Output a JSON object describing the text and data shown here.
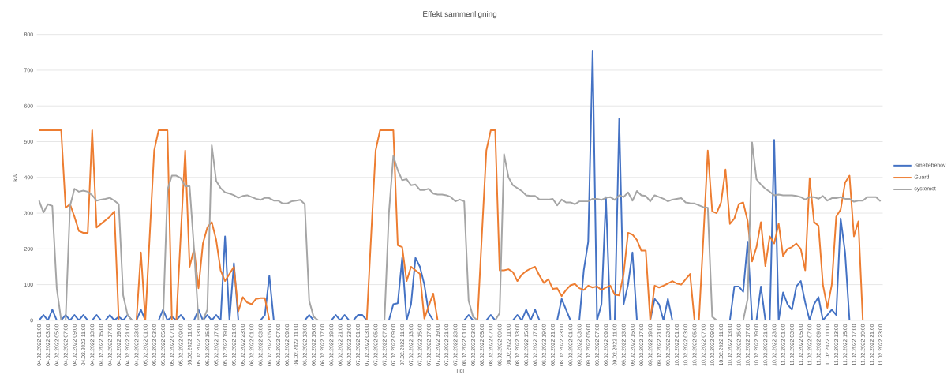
{
  "chart_data": {
    "type": "line",
    "title": "Effekt sammenligning",
    "xlabel": "Tidl",
    "ylabel": "kW",
    "categories": [
      "04.02.2022 01:00",
      null,
      "04.02.2022 03:00",
      null,
      "04.02.2022 05:00",
      null,
      "04.02.2022 07:00",
      null,
      "04.02.2022 09:00",
      null,
      "04.02.2022 11:00",
      null,
      "04.02.2022 13:00",
      null,
      "04.02.2022 15:00",
      null,
      "04.02.2022 17:00",
      null,
      "04.02.2022 19:00",
      null,
      "04.02.2022 21:00",
      null,
      "04.02.2022 23:00",
      null,
      "05.02.2022 01:00",
      null,
      "05.02.2022 03:00",
      null,
      "05.02.2022 05:00",
      null,
      "05.02.2022 07:00",
      null,
      "05.02.2022 09:00",
      null,
      "05.02.2022 11:00",
      null,
      "05.02.2022 13:00",
      null,
      "05.02.2022 15:00",
      null,
      "05.02.2022 17:00",
      null,
      "05.02.2022 19:00",
      null,
      "05.02.2022 21:00",
      null,
      "05.02.2022 23:00",
      null,
      "06.02.2022 01:00",
      null,
      "06.02.2022 03:00",
      null,
      "06.02.2022 05:00",
      null,
      "06.02.2022 07:00",
      null,
      "06.02.2022 09:00",
      null,
      "06.02.2022 11:00",
      null,
      "06.02.2022 13:00",
      null,
      "06.02.2022 15:00",
      null,
      "06.02.2022 17:00",
      null,
      "06.02.2022 19:00",
      null,
      "06.02.2022 21:00",
      null,
      "06.02.2022 23:00",
      null,
      "07.02.2022 01:00",
      null,
      "07.02.2022 03:00",
      null,
      "07.02.2022 05:00",
      null,
      "07.02.2022 07:00",
      null,
      "07.02.2022 09:00",
      null,
      "07.02.2022 11:00",
      null,
      "07.02.2022 13:00",
      null,
      "07.02.2022 15:00",
      null,
      "07.02.2022 17:00",
      null,
      "07.02.2022 19:00",
      null,
      "07.02.2022 21:00",
      null,
      "07.02.2022 23:00",
      null,
      "08.02.2022 01:00",
      null,
      "08.02.2022 03:00",
      null,
      "08.02.2022 05:00",
      null,
      "08.02.2022 07:00",
      null,
      "08.02.2022 09:00",
      null,
      "08.02.2022 11:00",
      null,
      "08.02.2022 13:00",
      null,
      "08.02.2022 15:00",
      null,
      "08.02.2022 17:00",
      null,
      "08.02.2022 19:00",
      null,
      "08.02.2022 21:00",
      null,
      "08.02.2022 23:00",
      null,
      "09.02.2022 01:00",
      null,
      "09.02.2022 03:00",
      null,
      "09.02.2022 05:00",
      null,
      "09.02.2022 07:00",
      null,
      "09.02.2022 09:00",
      null,
      "09.02.2022 11:00",
      null,
      "09.02.2022 13:00",
      null,
      "09.02.2022 15:00",
      null,
      "09.02.2022 17:00",
      null,
      "09.02.2022 19:00",
      null,
      "09.02.2022 21:00",
      null,
      "09.02.2022 23:00",
      null,
      "10.02.2022 01:00",
      null,
      "10.02.2022 03:00",
      null,
      "10.02.2022 05:00",
      null,
      "10.02.2022 07:00",
      null,
      "10.02.2022 09:00",
      null,
      "10.02.2022 11:00",
      null,
      "10.02.2022 13:00",
      null,
      "10.02.2022 15:00",
      null,
      "10.02.2022 17:00",
      null,
      "10.02.2022 19:00",
      null,
      "10.02.2022 21:00",
      null,
      "10.02.2022 23:00",
      null,
      "11.02.2022 01:00",
      null,
      "11.02.2022 03:00",
      null,
      "11.02.2022 05:00",
      null,
      "11.02.2022 07:00",
      null,
      "11.02.2022 09:00",
      null,
      "11.02.2022 11:00",
      null,
      "11.02.2022 13:00",
      null,
      "11.02.2022 15:00",
      null,
      "11.02.2022 17:00",
      null,
      "11.02.2022 19:00",
      null,
      "11.02.2022 21:00",
      null,
      "11.02.2022 23:00"
    ],
    "series": [
      {
        "name": "Smeltebehov",
        "color": "#4472c4",
        "values": [
          0,
          15,
          0,
          30,
          0,
          0,
          15,
          0,
          15,
          0,
          15,
          0,
          0,
          15,
          0,
          0,
          15,
          0,
          10,
          0,
          15,
          0,
          0,
          30,
          0,
          0,
          0,
          0,
          30,
          0,
          10,
          0,
          15,
          0,
          0,
          0,
          30,
          0,
          15,
          0,
          15,
          0,
          235,
          0,
          160,
          0,
          0,
          0,
          0,
          0,
          0,
          15,
          125,
          0,
          0,
          0,
          0,
          0,
          0,
          0,
          0,
          15,
          0,
          0,
          0,
          0,
          0,
          15,
          0,
          15,
          0,
          0,
          15,
          15,
          0,
          0,
          0,
          0,
          0,
          0,
          45,
          48,
          175,
          0,
          45,
          175,
          150,
          100,
          20,
          0,
          0,
          0,
          0,
          0,
          0,
          0,
          0,
          15,
          0,
          0,
          0,
          0,
          15,
          0,
          0,
          0,
          0,
          0,
          15,
          0,
          30,
          0,
          30,
          0,
          0,
          0,
          0,
          0,
          60,
          30,
          0,
          0,
          0,
          140,
          220,
          755,
          0,
          45,
          345,
          0,
          0,
          565,
          45,
          100,
          190,
          0,
          0,
          0,
          0,
          60,
          45,
          0,
          60,
          0,
          0,
          0,
          0,
          0,
          0,
          0,
          0,
          0,
          0,
          0,
          0,
          0,
          0,
          95,
          95,
          80,
          220,
          0,
          0,
          95,
          0,
          0,
          505,
          0,
          78,
          45,
          30,
          95,
          110,
          50,
          0,
          45,
          65,
          0,
          15,
          30,
          15,
          285,
          190,
          0,
          0,
          0,
          0,
          0,
          null,
          null,
          null
        ]
      },
      {
        "name": "Guard",
        "color": "#ed7d31",
        "values": [
          532,
          532,
          532,
          532,
          532,
          532,
          315,
          325,
          290,
          250,
          245,
          245,
          532,
          260,
          270,
          280,
          290,
          305,
          0,
          0,
          0,
          0,
          0,
          190,
          0,
          240,
          475,
          532,
          532,
          532,
          0,
          0,
          240,
          475,
          150,
          200,
          90,
          215,
          260,
          275,
          225,
          140,
          110,
          130,
          150,
          25,
          65,
          50,
          45,
          60,
          62,
          62,
          0,
          0,
          0,
          0,
          0,
          0,
          0,
          0,
          0,
          0,
          0,
          0,
          0,
          0,
          0,
          0,
          0,
          0,
          0,
          0,
          0,
          0,
          0,
          240,
          475,
          532,
          532,
          532,
          532,
          210,
          205,
          110,
          150,
          140,
          130,
          5,
          40,
          75,
          0,
          0,
          0,
          0,
          0,
          0,
          0,
          0,
          0,
          0,
          240,
          475,
          532,
          532,
          140,
          140,
          143,
          135,
          110,
          128,
          138,
          145,
          150,
          125,
          105,
          115,
          88,
          90,
          68,
          85,
          98,
          102,
          90,
          85,
          97,
          92,
          95,
          85,
          92,
          97,
          72,
          70,
          130,
          245,
          240,
          225,
          195,
          195,
          0,
          97,
          92,
          97,
          103,
          110,
          103,
          100,
          115,
          130,
          0,
          0,
          230,
          475,
          305,
          300,
          330,
          422,
          270,
          285,
          325,
          330,
          278,
          165,
          205,
          275,
          152,
          235,
          215,
          271,
          180,
          200,
          205,
          215,
          200,
          140,
          398,
          275,
          265,
          100,
          35,
          100,
          290,
          310,
          385,
          405,
          235,
          277,
          0,
          0,
          0,
          0,
          0
        ]
      },
      {
        "name": "systemet",
        "color": "#a5a5a5",
        "values": [
          335,
          302,
          325,
          320,
          90,
          0,
          0,
          320,
          368,
          360,
          363,
          360,
          350,
          335,
          338,
          340,
          343,
          335,
          325,
          70,
          15,
          0,
          0,
          0,
          0,
          0,
          0,
          0,
          0,
          365,
          405,
          405,
          398,
          375,
          375,
          200,
          0,
          0,
          30,
          490,
          390,
          370,
          358,
          355,
          350,
          343,
          348,
          350,
          345,
          340,
          337,
          343,
          342,
          335,
          335,
          327,
          327,
          333,
          335,
          337,
          325,
          55,
          10,
          0,
          0,
          0,
          0,
          0,
          0,
          0,
          0,
          0,
          0,
          0,
          0,
          0,
          0,
          0,
          0,
          300,
          460,
          420,
          392,
          395,
          378,
          380,
          365,
          365,
          368,
          355,
          352,
          352,
          350,
          345,
          333,
          338,
          333,
          55,
          10,
          0,
          0,
          0,
          0,
          0,
          20,
          465,
          400,
          378,
          370,
          362,
          350,
          348,
          348,
          338,
          338,
          338,
          340,
          322,
          338,
          330,
          330,
          325,
          333,
          333,
          333,
          340,
          340,
          337,
          343,
          345,
          337,
          350,
          345,
          358,
          335,
          362,
          350,
          348,
          333,
          350,
          345,
          340,
          333,
          338,
          340,
          342,
          330,
          328,
          327,
          322,
          317,
          315,
          10,
          0,
          0,
          0,
          0,
          0,
          0,
          0,
          60,
          498,
          395,
          380,
          368,
          360,
          350,
          352,
          350,
          350,
          350,
          348,
          345,
          338,
          345,
          345,
          340,
          348,
          335,
          342,
          342,
          345,
          340,
          340,
          332,
          335,
          335,
          345,
          345,
          345,
          333
        ]
      }
    ],
    "ylim": [
      0,
      800
    ],
    "yticks": [
      0,
      100,
      200,
      300,
      400,
      500,
      600,
      700,
      800
    ],
    "grid": "y",
    "legend": "right",
    "marker": "none",
    "line_style": "solid"
  }
}
